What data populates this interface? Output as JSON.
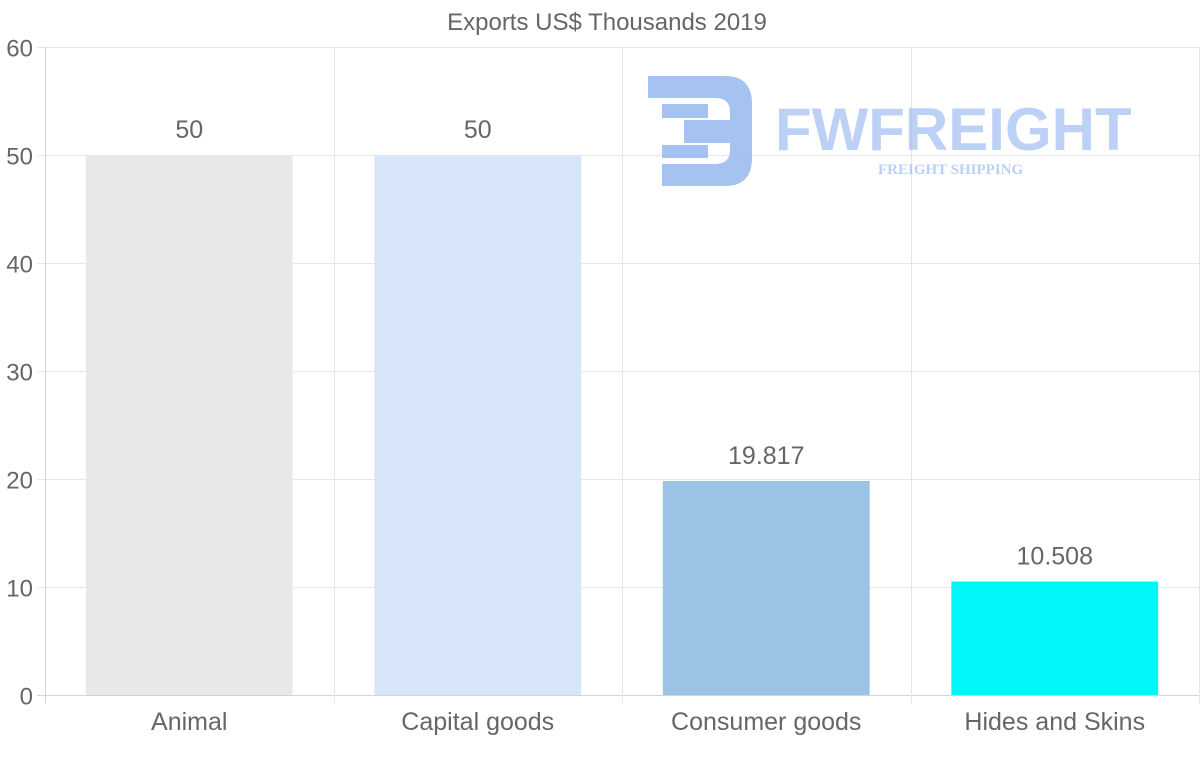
{
  "chart_data": {
    "type": "bar",
    "title": "Exports US$ Thousands 2019",
    "categories": [
      "Animal",
      "Capital goods",
      "Consumer goods",
      "Hides and Skins"
    ],
    "values": [
      50,
      50,
      19.817,
      10.508
    ],
    "value_labels": [
      "50",
      "50",
      "19.817",
      "10.508"
    ],
    "bar_colors": [
      "#e8e8e8",
      "#d6e6f8",
      "#9bc3e6",
      "#00f7f7"
    ],
    "ylim": [
      0,
      60
    ],
    "yticks": [
      "0",
      "10",
      "20",
      "30",
      "40",
      "50",
      "60"
    ],
    "xlabel": "",
    "ylabel": "",
    "grid": true,
    "legend": "none"
  },
  "watermark": {
    "brand": "FWFREIGHT",
    "tagline": "FREIGHT SHIPPING",
    "color": "#8fb3ee"
  }
}
